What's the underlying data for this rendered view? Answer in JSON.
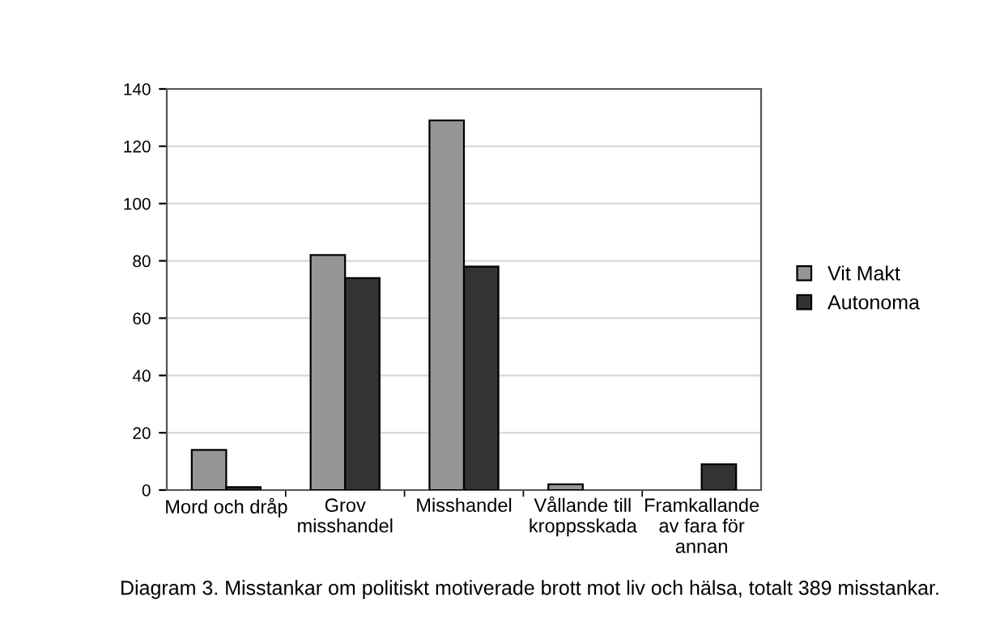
{
  "chart_data": {
    "type": "bar",
    "categories": [
      "Mord och dråp",
      "Grov\nmisshandel",
      "Misshandel",
      "Vållande till\nkroppsskada",
      "Framkallande\nav fara för\nannan"
    ],
    "series": [
      {
        "name": "Vit Makt",
        "color": "#969696",
        "values": [
          14,
          82,
          129,
          2,
          null
        ]
      },
      {
        "name": "Autonoma",
        "color": "#333333",
        "values": [
          1,
          74,
          78,
          null,
          9
        ]
      }
    ],
    "ylim": [
      0,
      140
    ],
    "yticks": [
      0,
      20,
      40,
      60,
      80,
      100,
      120,
      140
    ],
    "grid": "y",
    "legend": "right",
    "annotations": [
      "Diagram 3. Misstankar om politiskt motiverade brott mot liv och hälsa, totalt 389 misstankar."
    ]
  }
}
